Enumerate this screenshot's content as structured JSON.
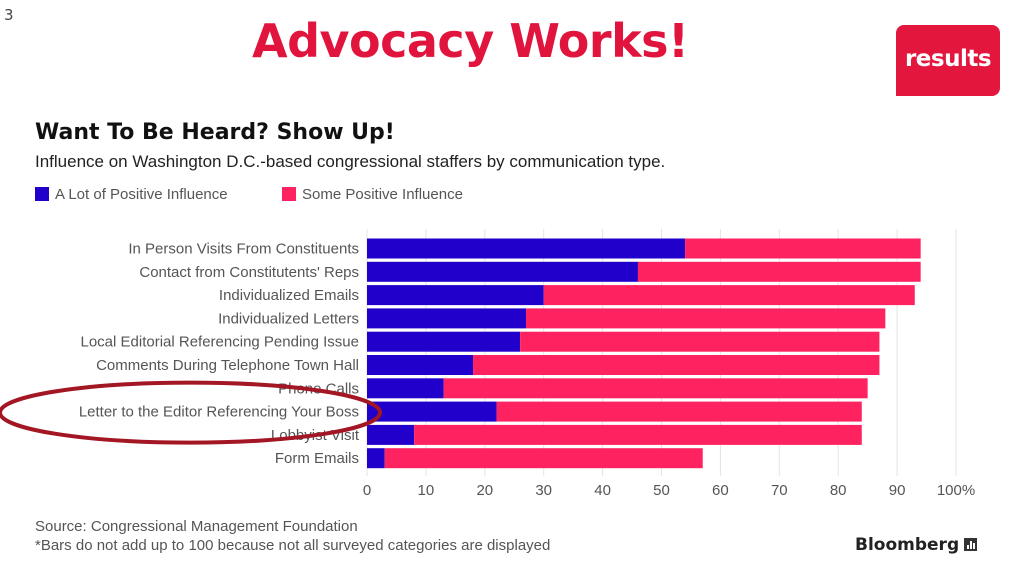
{
  "slide": {
    "number": "3",
    "title": "Advocacy Works!",
    "logo_text": "results"
  },
  "chart_data": {
    "type": "bar",
    "orientation": "horizontal",
    "stacked": true,
    "title": "Want To Be Heard? Show Up!",
    "subtitle": "Influence on Washington D.C.-based congressional staffers by communication type.",
    "categories": [
      "In Person Visits From Constituents",
      "Contact from Constitutents' Reps",
      "Individualized Emails",
      "Individualized Letters",
      "Local Editorial Referencing Pending Issue",
      "Comments During Telephone Town Hall",
      "Phone Calls",
      "Letter to the Editor Referencing Your Boss",
      "Lobbyist Visit",
      "Form Emails"
    ],
    "series": [
      {
        "name": "A Lot of Positive Influence",
        "color": "#2200cc",
        "values": [
          54,
          46,
          30,
          27,
          26,
          18,
          13,
          22,
          8,
          3
        ]
      },
      {
        "name": "Some Positive Influence",
        "color": "#ff2261",
        "values": [
          40,
          48,
          63,
          61,
          61,
          69,
          72,
          62,
          76,
          54
        ]
      }
    ],
    "x_ticks": [
      "0",
      "10",
      "20",
      "30",
      "40",
      "50",
      "60",
      "70",
      "80",
      "90",
      "100%"
    ],
    "xlim": [
      0,
      100
    ],
    "grid": true,
    "legend_position": "top-left",
    "annotation": "red ellipse circling the 'Letter to the Editor Referencing Your Boss' label",
    "source": "Source: Congressional Management Foundation",
    "footnote": "*Bars do not add up to 100 because not all surveyed categories are displayed",
    "brand": "Bloomberg",
    "annotation_color": "#a31624"
  }
}
